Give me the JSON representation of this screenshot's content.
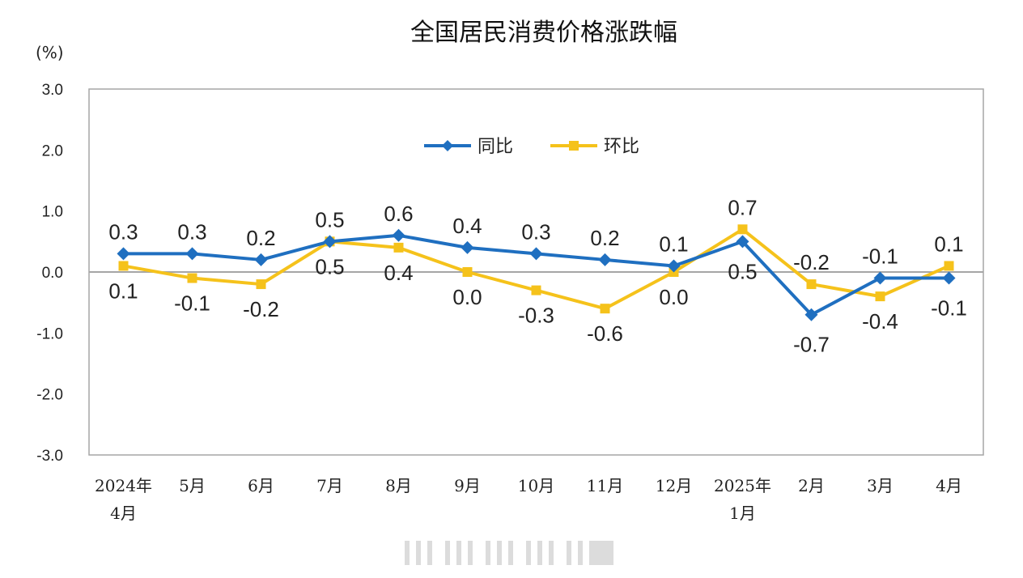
{
  "chart_data": {
    "type": "line",
    "title": "全国居民消费价格涨跌幅",
    "unit_label": "(%)",
    "ylim": [
      -3.0,
      3.0
    ],
    "yticks": [
      "3.0",
      "2.0",
      "1.0",
      "0.0",
      "-1.0",
      "-2.0",
      "-3.0"
    ],
    "categories": [
      [
        "2024年",
        "4月"
      ],
      [
        "5月"
      ],
      [
        "6月"
      ],
      [
        "7月"
      ],
      [
        "8月"
      ],
      [
        "9月"
      ],
      [
        "10月"
      ],
      [
        "11月"
      ],
      [
        "12月"
      ],
      [
        "2025年",
        "1月"
      ],
      [
        "2月"
      ],
      [
        "3月"
      ],
      [
        "4月"
      ]
    ],
    "series": [
      {
        "name": "同比",
        "color": "#1f6fc0",
        "marker": "diamond",
        "values": [
          0.3,
          0.3,
          0.2,
          0.5,
          0.6,
          0.4,
          0.3,
          0.2,
          0.1,
          0.5,
          -0.7,
          -0.1,
          -0.1
        ],
        "labels": [
          "0.3",
          "0.3",
          "0.2",
          "0.5",
          "0.6",
          "0.4",
          "0.3",
          "0.2",
          "0.1",
          "0.5",
          "-0.7",
          "-0.1",
          "-0.1"
        ]
      },
      {
        "name": "环比",
        "color": "#f5c21b",
        "marker": "square",
        "values": [
          0.1,
          -0.1,
          -0.2,
          0.5,
          0.4,
          0.0,
          -0.3,
          -0.6,
          0.0,
          0.7,
          -0.2,
          -0.4,
          0.1
        ],
        "labels": [
          "0.1",
          "-0.1",
          "-0.2",
          "0.5",
          "0.4",
          "0.0",
          "-0.3",
          "-0.6",
          "0.0",
          "0.7",
          "-0.2",
          "-0.4",
          "0.1"
        ]
      }
    ],
    "legend_position": "top-center",
    "grid": false
  }
}
